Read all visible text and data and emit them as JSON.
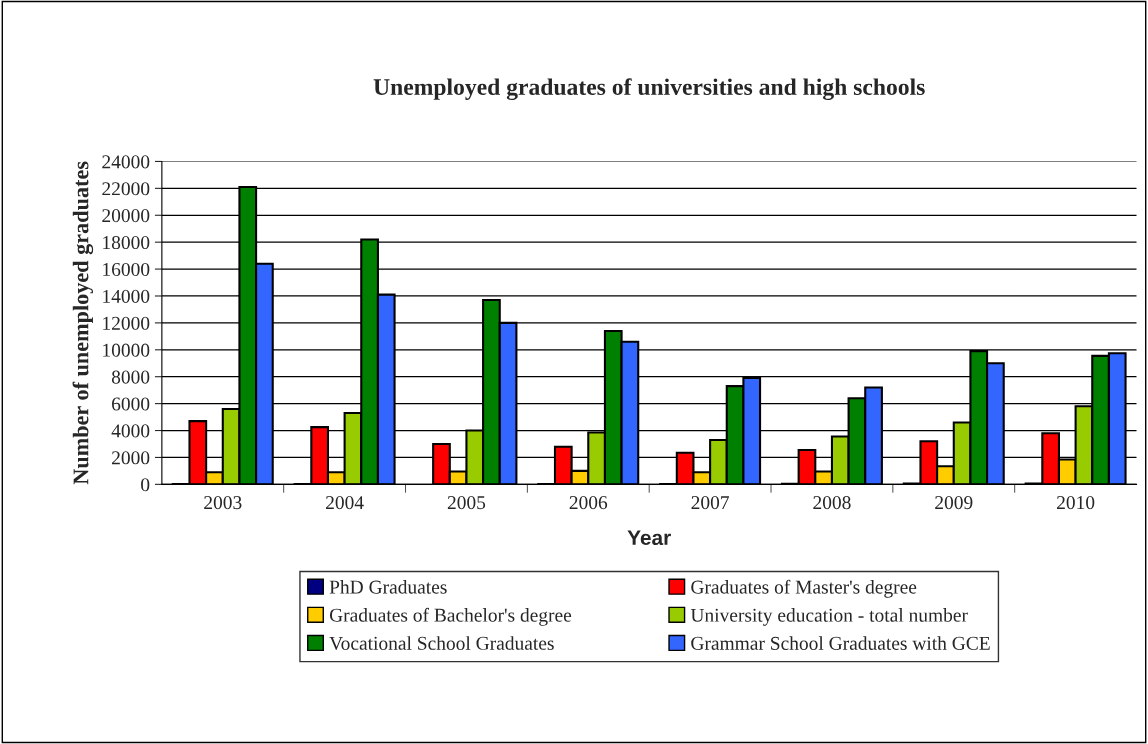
{
  "chart_data": {
    "type": "bar",
    "title": "Unemployed graduates of universities and high schools",
    "xlabel": "Year",
    "ylabel": "Number of unemployed graduates",
    "categories": [
      "2003",
      "2004",
      "2005",
      "2006",
      "2007",
      "2008",
      "2009",
      "2010"
    ],
    "series": [
      {
        "name": "PhD Graduates",
        "color": "#000080",
        "values": [
          30,
          30,
          null,
          30,
          30,
          40,
          60,
          60
        ]
      },
      {
        "name": "Graduates of Master's degree",
        "color": "#ff0000",
        "values": [
          4700,
          4250,
          3000,
          2800,
          2350,
          2550,
          3200,
          3800
        ]
      },
      {
        "name": "Graduates of Bachelor's degree",
        "color": "#ffcc00",
        "values": [
          900,
          900,
          950,
          1000,
          900,
          950,
          1350,
          1850
        ]
      },
      {
        "name": "University education - total number",
        "color": "#99cc00",
        "values": [
          5600,
          5300,
          4000,
          3850,
          3300,
          3550,
          4600,
          5800
        ]
      },
      {
        "name": "Vocational School Graduates",
        "color": "#008000",
        "values": [
          22100,
          18200,
          13700,
          11400,
          7300,
          6400,
          9900,
          9550
        ]
      },
      {
        "name": "Grammar School Graduates with GCE",
        "color": "#3366ff",
        "values": [
          16400,
          14100,
          12000,
          10600,
          7900,
          7200,
          9000,
          9750
        ]
      }
    ],
    "ylim": [
      0,
      24000
    ],
    "yticks": [
      0,
      2000,
      4000,
      6000,
      8000,
      10000,
      12000,
      14000,
      16000,
      18000,
      20000,
      22000,
      24000
    ],
    "grid": "y",
    "legend": "bottom"
  }
}
